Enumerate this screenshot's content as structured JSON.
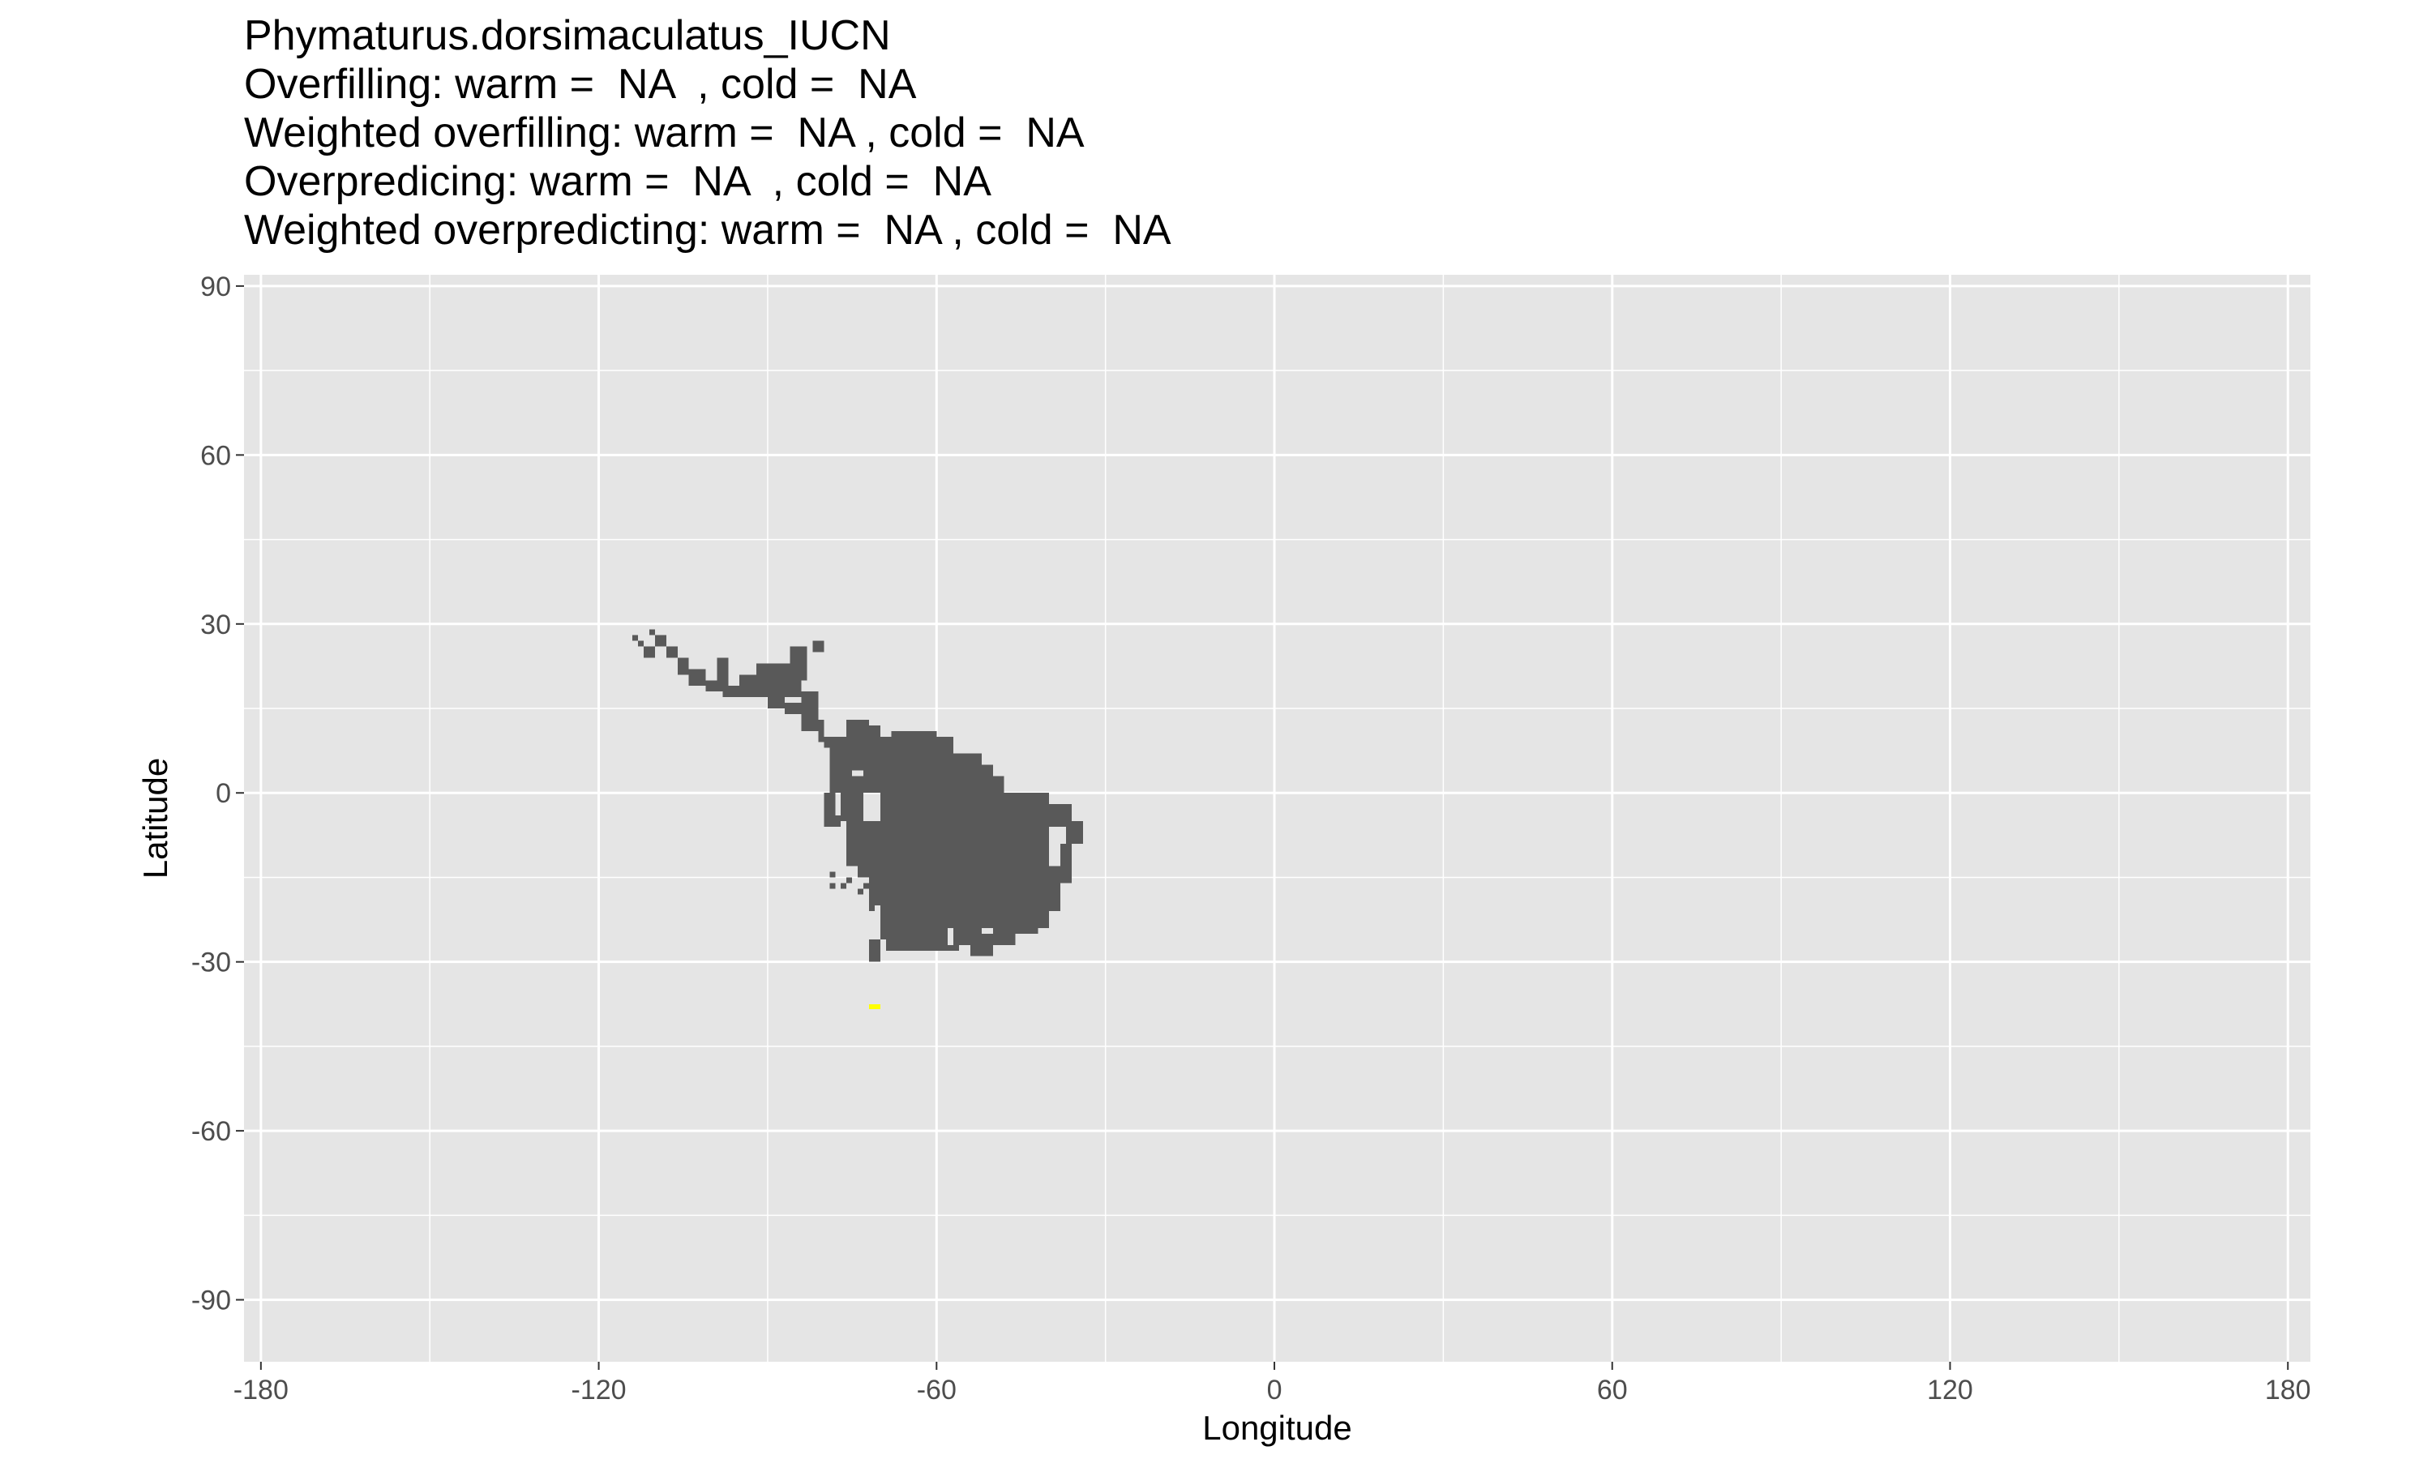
{
  "title_lines": [
    "Phymaturus.dorsimaculatus_IUCN",
    "Overfilling: warm =  NA  , cold =  NA",
    "Weighted overfilling: warm =  NA , cold =  NA",
    "Overpredicing: warm =  NA  , cold =  NA",
    "Weighted overpredicting: warm =  NA , cold =  NA"
  ],
  "chart_data": {
    "type": "heatmap",
    "xlabel": "Longitude",
    "ylabel": "Latitude",
    "xlim": [
      -183,
      184
    ],
    "ylim": [
      -101,
      92
    ],
    "x_ticks": [
      -180,
      -120,
      -60,
      0,
      60,
      120,
      180
    ],
    "y_ticks": [
      90,
      60,
      30,
      0,
      -30,
      -60,
      -90
    ],
    "x_tick_labels": [
      "-180",
      "-120",
      "-60",
      "0",
      "60",
      "120",
      "180"
    ],
    "y_tick_labels": [
      "90",
      "60",
      "30",
      "0",
      "-30",
      "-60",
      "-90"
    ],
    "grid": true,
    "panel_color": "#e5e5e5",
    "grid_color": "#ffffff",
    "layers": [
      {
        "fill": "#595959",
        "cells": [
          [
            -114,
            28,
            -113,
            27
          ],
          [
            -113,
            27,
            -112,
            26
          ],
          [
            -112,
            26,
            -110,
            24
          ],
          [
            -111,
            29,
            -110,
            28
          ],
          [
            -110,
            28,
            -108,
            26
          ],
          [
            -108,
            26,
            -106,
            24
          ],
          [
            -106,
            24,
            -104,
            21
          ],
          [
            -104,
            22,
            -101,
            19
          ],
          [
            -101,
            20,
            -98,
            18
          ],
          [
            -99,
            24,
            -97,
            18
          ],
          [
            -98,
            19,
            -94,
            17
          ],
          [
            -95,
            21,
            -90,
            17
          ],
          [
            -92,
            23,
            -85,
            18
          ],
          [
            -90,
            18,
            -87,
            15
          ],
          [
            -87,
            16,
            -84,
            14
          ],
          [
            -86,
            26,
            -83,
            20
          ],
          [
            -87,
            22,
            -84,
            17
          ],
          [
            -84,
            18,
            -81,
            11
          ],
          [
            -81,
            13,
            -80,
            9
          ],
          [
            -82,
            27,
            -80,
            25
          ],
          [
            -84,
            16,
            -82,
            14
          ],
          [
            -80,
            10,
            -75,
            8
          ],
          [
            -79,
            9,
            -75,
            0
          ],
          [
            -78,
            10,
            -73,
            4
          ],
          [
            -76,
            13,
            -72,
            9
          ],
          [
            -73,
            12,
            -70,
            0
          ],
          [
            -68,
            11,
            -60,
            -5
          ],
          [
            -62,
            10,
            -57,
            5
          ],
          [
            -58,
            7,
            -52,
            2
          ],
          [
            -60,
            5,
            -50,
            -7
          ],
          [
            -52,
            3,
            -48,
            0
          ],
          [
            -50,
            0,
            -42,
            -3
          ],
          [
            -44,
            -2,
            -36,
            -6
          ],
          [
            -37,
            -5,
            -34,
            -9
          ],
          [
            -36,
            -9,
            -38,
            -16
          ],
          [
            -38,
            -13,
            -40,
            -21
          ],
          [
            -40,
            -19,
            -42,
            -23
          ],
          [
            -42,
            -22,
            -46,
            -25
          ],
          [
            -46,
            -24,
            -50,
            -27
          ],
          [
            -73,
            3,
            -77,
            -5
          ],
          [
            -77,
            -4,
            -80,
            -6
          ],
          [
            -76,
            -5,
            -70,
            -13
          ],
          [
            -72,
            -12,
            -64,
            -20
          ],
          [
            -70,
            -19,
            -62,
            -24
          ],
          [
            -65,
            -23,
            -58,
            -28
          ],
          [
            -68,
            -24,
            -64,
            -27
          ],
          [
            -57,
            -24,
            -52,
            -27
          ],
          [
            -54,
            -25,
            -50,
            -29
          ],
          [
            -70,
            0,
            -40,
            -24
          ],
          [
            -66,
            -5,
            -44,
            -22
          ],
          [
            -61,
            -4,
            -50,
            -20
          ],
          [
            -70,
            0,
            -66,
            -12
          ],
          [
            -72,
            10,
            -64,
            0
          ],
          [
            -80,
            0,
            -78,
            -4
          ],
          [
            -75,
            -8,
            -73,
            -10
          ],
          [
            -73,
            -11,
            -71,
            -14
          ],
          [
            -67,
            -22,
            -66,
            -24
          ],
          [
            -74,
            -13,
            -70,
            -15
          ],
          [
            -76,
            -7,
            -74,
            -8
          ],
          [
            -72,
            -16,
            -70,
            -20
          ],
          [
            -68,
            -18,
            -67,
            -20
          ],
          [
            -73,
            -16,
            -71,
            -17
          ],
          [
            -70,
            -15,
            -68,
            -17
          ],
          [
            -72,
            -16,
            -72,
            -17
          ],
          [
            -74,
            -17,
            -73,
            -18
          ],
          [
            -72,
            -20,
            -71,
            -21
          ],
          [
            -79,
            -16,
            -78,
            -17
          ],
          [
            -79,
            -14,
            -78,
            -15
          ],
          [
            -76,
            -15,
            -75,
            -16
          ],
          [
            -77,
            -16,
            -76,
            -17
          ],
          [
            -74,
            -11,
            -73,
            -12
          ],
          [
            -70,
            -24,
            -68,
            -26
          ],
          [
            -70,
            -26,
            -72,
            -30
          ],
          [
            -69,
            -26,
            -63,
            -28
          ],
          [
            -66,
            -26,
            -60,
            -27
          ],
          [
            -60,
            -26,
            -58,
            -28
          ],
          [
            -58,
            -27,
            -56,
            -28
          ],
          [
            -48,
            -24,
            -46,
            -26
          ],
          [
            -45,
            -22,
            -40,
            -24
          ]
        ]
      },
      {
        "fill": "#ffff00",
        "cells": [
          [
            -72,
            -37.5,
            -70,
            -38.4
          ]
        ]
      }
    ]
  }
}
